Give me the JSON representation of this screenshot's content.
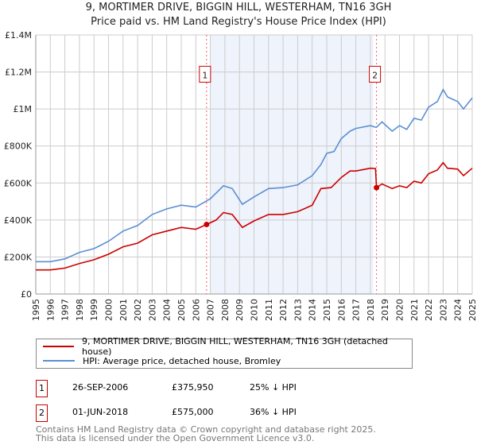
{
  "title": "9, MORTIMER DRIVE, BIGGIN HILL, WESTERHAM, TN16 3GH",
  "subtitle": "Price paid vs. HM Land Registry's House Price Index (HPI)",
  "colors": {
    "property": "#cc0000",
    "hpi": "#5b8fd4",
    "shade": "#eef3fc",
    "marker_border": "#cc0000"
  },
  "chart_data": {
    "type": "line",
    "title": "9, MORTIMER DRIVE, BIGGIN HILL, WESTERHAM, TN16 3GH",
    "xlim": [
      1995,
      2025
    ],
    "ylim": [
      0,
      1400000
    ],
    "yticks": [
      {
        "v": 0,
        "label": "£0"
      },
      {
        "v": 200000,
        "label": "£200K"
      },
      {
        "v": 400000,
        "label": "£400K"
      },
      {
        "v": 600000,
        "label": "£600K"
      },
      {
        "v": 800000,
        "label": "£800K"
      },
      {
        "v": 1000000,
        "label": "£1M"
      },
      {
        "v": 1200000,
        "label": "£1.2M"
      },
      {
        "v": 1400000,
        "label": "£1.4M"
      }
    ],
    "xticks": [
      "1995",
      "1996",
      "1997",
      "1998",
      "1999",
      "2000",
      "2001",
      "2002",
      "2003",
      "2004",
      "2005",
      "2006",
      "2007",
      "2008",
      "2009",
      "2010",
      "2011",
      "2012",
      "2013",
      "2014",
      "2015",
      "2016",
      "2017",
      "2018",
      "2019",
      "2020",
      "2021",
      "2022",
      "2023",
      "2024",
      "2025"
    ],
    "grid": true,
    "shaded_range": [
      2007,
      2018.2
    ],
    "series": [
      {
        "name": "9, MORTIMER DRIVE, BIGGIN HILL, WESTERHAM, TN16 3GH (detached house)",
        "color": "#cc0000",
        "x": [
          1995,
          1996,
          1997,
          1998,
          1999,
          2000,
          2001,
          2002,
          2003,
          2004,
          2005,
          2006,
          2006.74,
          2007.4,
          2007.9,
          2008.5,
          2009.2,
          2010,
          2011,
          2012,
          2013,
          2014,
          2014.6,
          2015.3,
          2016,
          2016.6,
          2017,
          2018,
          2018.35,
          2018.42,
          2018.8,
          2019.5,
          2020,
          2020.5,
          2021,
          2021.5,
          2022,
          2022.6,
          2023,
          2023.3,
          2024,
          2024.4,
          2025
        ],
        "y": [
          130000,
          130000,
          140000,
          165000,
          185000,
          215000,
          255000,
          275000,
          320000,
          340000,
          360000,
          350000,
          375950,
          400000,
          440000,
          430000,
          360000,
          395000,
          430000,
          430000,
          445000,
          480000,
          570000,
          575000,
          630000,
          665000,
          665000,
          680000,
          678000,
          575000,
          595000,
          570000,
          585000,
          575000,
          610000,
          600000,
          650000,
          670000,
          710000,
          680000,
          675000,
          640000,
          680000
        ]
      },
      {
        "name": "HPI: Average price, detached house, Bromley",
        "color": "#5b8fd4",
        "x": [
          1995,
          1996,
          1997,
          1998,
          1999,
          2000,
          2001,
          2002,
          2003,
          2004,
          2005,
          2006,
          2007,
          2007.9,
          2008.5,
          2009.2,
          2010,
          2011,
          2012,
          2013,
          2014,
          2014.6,
          2015,
          2015.5,
          2016,
          2016.6,
          2017,
          2018,
          2018.4,
          2018.8,
          2019.5,
          2020,
          2020.5,
          2021,
          2021.5,
          2022,
          2022.6,
          2023,
          2023.3,
          2024,
          2024.4,
          2025
        ],
        "y": [
          175000,
          175000,
          190000,
          225000,
          245000,
          285000,
          340000,
          370000,
          430000,
          460000,
          480000,
          470000,
          515000,
          585000,
          570000,
          485000,
          525000,
          570000,
          575000,
          590000,
          640000,
          700000,
          760000,
          770000,
          840000,
          880000,
          895000,
          910000,
          900000,
          930000,
          880000,
          910000,
          890000,
          950000,
          940000,
          1010000,
          1040000,
          1105000,
          1065000,
          1040000,
          1000000,
          1060000
        ]
      }
    ],
    "annotations": [
      {
        "label": "1",
        "x": 2006.74,
        "y": 375950
      },
      {
        "label": "2",
        "x": 2018.42,
        "y": 575000
      }
    ]
  },
  "legend": {
    "property": "9, MORTIMER DRIVE, BIGGIN HILL, WESTERHAM, TN16 3GH (detached house)",
    "hpi": "HPI: Average price, detached house, Bromley"
  },
  "transactions": [
    {
      "num": "1",
      "date": "26-SEP-2006",
      "price": "£375,950",
      "delta": "25% ↓ HPI"
    },
    {
      "num": "2",
      "date": "01-JUN-2018",
      "price": "£575,000",
      "delta": "36% ↓ HPI"
    }
  ],
  "footer": {
    "line1": "Contains HM Land Registry data © Crown copyright and database right 2025.",
    "line2": "This data is licensed under the Open Government Licence v3.0."
  }
}
